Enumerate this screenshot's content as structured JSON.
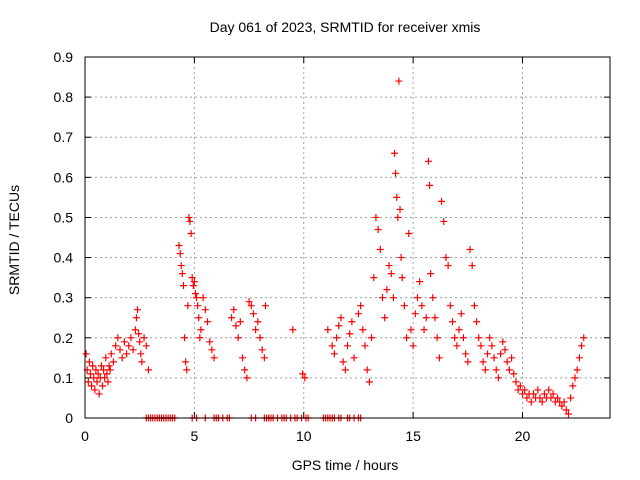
{
  "chart_data": {
    "type": "scatter",
    "title": "Day 061 of 2023, SRMTID for receiver xmis",
    "xlabel": "GPS time / hours",
    "ylabel": "SRMTID / TECUs",
    "xlim": [
      0,
      24
    ],
    "ylim": [
      0,
      0.9
    ],
    "xticks": [
      0,
      5,
      10,
      15,
      20
    ],
    "xtick_labels": [
      "0",
      "5",
      "10",
      "15",
      "20"
    ],
    "yticks": [
      0,
      0.1,
      0.2,
      0.3,
      0.4,
      0.5,
      0.6,
      0.7,
      0.8,
      0.9
    ],
    "ytick_labels": [
      "0",
      "0.1",
      "0.2",
      "0.3",
      "0.4",
      "0.5",
      "0.6",
      "0.7",
      "0.8",
      "0.9"
    ],
    "grid": true,
    "marker": "+",
    "series_color": "#ff0000",
    "series": [
      {
        "name": "SRMTID",
        "points": [
          [
            0.05,
            0.16
          ],
          [
            0.1,
            0.12
          ],
          [
            0.15,
            0.09
          ],
          [
            0.2,
            0.14
          ],
          [
            0.25,
            0.11
          ],
          [
            0.3,
            0.08
          ],
          [
            0.35,
            0.13
          ],
          [
            0.4,
            0.1
          ],
          [
            0.45,
            0.07
          ],
          [
            0.5,
            0.12
          ],
          [
            0.55,
            0.09
          ],
          [
            0.6,
            0.11
          ],
          [
            0.65,
            0.06
          ],
          [
            0.7,
            0.1
          ],
          [
            0.75,
            0.13
          ],
          [
            0.8,
            0.08
          ],
          [
            0.85,
            0.12
          ],
          [
            0.9,
            0.1
          ],
          [
            0.95,
            0.15
          ],
          [
            1.0,
            0.11
          ],
          [
            1.05,
            0.09
          ],
          [
            1.1,
            0.13
          ],
          [
            1.15,
            0.12
          ],
          [
            1.2,
            0.16
          ],
          [
            1.3,
            0.14
          ],
          [
            1.4,
            0.18
          ],
          [
            1.5,
            0.2
          ],
          [
            1.6,
            0.17
          ],
          [
            1.7,
            0.15
          ],
          [
            1.8,
            0.19
          ],
          [
            1.9,
            0.16
          ],
          [
            2.0,
            0.18
          ],
          [
            2.1,
            0.2
          ],
          [
            2.2,
            0.17
          ],
          [
            2.3,
            0.22
          ],
          [
            2.35,
            0.25
          ],
          [
            2.4,
            0.27
          ],
          [
            2.45,
            0.21
          ],
          [
            2.5,
            0.19
          ],
          [
            2.55,
            0.16
          ],
          [
            2.6,
            0.14
          ],
          [
            2.7,
            0.2
          ],
          [
            2.8,
            0.18
          ],
          [
            2.9,
            0.12
          ],
          [
            4.3,
            0.43
          ],
          [
            4.35,
            0.41
          ],
          [
            4.4,
            0.38
          ],
          [
            4.45,
            0.36
          ],
          [
            4.5,
            0.33
          ],
          [
            4.55,
            0.2
          ],
          [
            4.6,
            0.14
          ],
          [
            4.65,
            0.12
          ],
          [
            4.7,
            0.28
          ],
          [
            4.75,
            0.5
          ],
          [
            4.8,
            0.49
          ],
          [
            4.85,
            0.46
          ],
          [
            4.9,
            0.35
          ],
          [
            4.95,
            0.33
          ],
          [
            5.0,
            0.34
          ],
          [
            5.05,
            0.31
          ],
          [
            5.1,
            0.3
          ],
          [
            5.15,
            0.28
          ],
          [
            5.2,
            0.25
          ],
          [
            5.25,
            0.2
          ],
          [
            5.3,
            0.22
          ],
          [
            5.4,
            0.3
          ],
          [
            5.5,
            0.27
          ],
          [
            5.6,
            0.24
          ],
          [
            5.7,
            0.19
          ],
          [
            5.8,
            0.17
          ],
          [
            5.9,
            0.15
          ],
          [
            6.7,
            0.25
          ],
          [
            6.8,
            0.27
          ],
          [
            6.9,
            0.23
          ],
          [
            7.0,
            0.2
          ],
          [
            7.1,
            0.24
          ],
          [
            7.2,
            0.15
          ],
          [
            7.3,
            0.12
          ],
          [
            7.4,
            0.1
          ],
          [
            7.5,
            0.29
          ],
          [
            7.6,
            0.28
          ],
          [
            7.7,
            0.26
          ],
          [
            7.8,
            0.22
          ],
          [
            7.9,
            0.24
          ],
          [
            8.0,
            0.2
          ],
          [
            8.1,
            0.17
          ],
          [
            8.2,
            0.15
          ],
          [
            8.25,
            0.28
          ],
          [
            9.5,
            0.22
          ],
          [
            9.95,
            0.11
          ],
          [
            10.05,
            0.1
          ],
          [
            11.1,
            0.22
          ],
          [
            11.3,
            0.18
          ],
          [
            11.4,
            0.16
          ],
          [
            11.5,
            0.2
          ],
          [
            11.6,
            0.23
          ],
          [
            11.7,
            0.25
          ],
          [
            11.8,
            0.14
          ],
          [
            11.9,
            0.12
          ],
          [
            12.0,
            0.18
          ],
          [
            12.1,
            0.21
          ],
          [
            12.2,
            0.24
          ],
          [
            12.3,
            0.15
          ],
          [
            12.5,
            0.26
          ],
          [
            12.6,
            0.28
          ],
          [
            12.7,
            0.22
          ],
          [
            12.8,
            0.18
          ],
          [
            12.9,
            0.12
          ],
          [
            13.0,
            0.09
          ],
          [
            13.1,
            0.2
          ],
          [
            13.2,
            0.35
          ],
          [
            13.3,
            0.5
          ],
          [
            13.4,
            0.47
          ],
          [
            13.5,
            0.42
          ],
          [
            13.6,
            0.3
          ],
          [
            13.7,
            0.25
          ],
          [
            13.8,
            0.32
          ],
          [
            13.9,
            0.38
          ],
          [
            14.0,
            0.36
          ],
          [
            14.1,
            0.3
          ],
          [
            14.15,
            0.66
          ],
          [
            14.2,
            0.61
          ],
          [
            14.25,
            0.55
          ],
          [
            14.3,
            0.5
          ],
          [
            14.35,
            0.84
          ],
          [
            14.4,
            0.52
          ],
          [
            14.45,
            0.4
          ],
          [
            14.5,
            0.35
          ],
          [
            14.6,
            0.28
          ],
          [
            14.7,
            0.2
          ],
          [
            14.8,
            0.46
          ],
          [
            14.9,
            0.22
          ],
          [
            15.0,
            0.18
          ],
          [
            15.1,
            0.26
          ],
          [
            15.2,
            0.3
          ],
          [
            15.3,
            0.34
          ],
          [
            15.4,
            0.28
          ],
          [
            15.5,
            0.22
          ],
          [
            15.6,
            0.25
          ],
          [
            15.7,
            0.64
          ],
          [
            15.75,
            0.58
          ],
          [
            15.8,
            0.36
          ],
          [
            15.9,
            0.3
          ],
          [
            16.0,
            0.25
          ],
          [
            16.1,
            0.2
          ],
          [
            16.2,
            0.15
          ],
          [
            16.3,
            0.54
          ],
          [
            16.4,
            0.49
          ],
          [
            16.5,
            0.4
          ],
          [
            16.6,
            0.38
          ],
          [
            16.7,
            0.28
          ],
          [
            16.8,
            0.24
          ],
          [
            16.9,
            0.2
          ],
          [
            17.0,
            0.18
          ],
          [
            17.1,
            0.22
          ],
          [
            17.2,
            0.26
          ],
          [
            17.3,
            0.2
          ],
          [
            17.4,
            0.16
          ],
          [
            17.5,
            0.14
          ],
          [
            17.6,
            0.42
          ],
          [
            17.7,
            0.38
          ],
          [
            17.8,
            0.28
          ],
          [
            17.9,
            0.24
          ],
          [
            18.0,
            0.2
          ],
          [
            18.1,
            0.18
          ],
          [
            18.2,
            0.14
          ],
          [
            18.3,
            0.12
          ],
          [
            18.4,
            0.16
          ],
          [
            18.5,
            0.2
          ],
          [
            18.6,
            0.18
          ],
          [
            18.7,
            0.15
          ],
          [
            18.8,
            0.12
          ],
          [
            18.9,
            0.1
          ],
          [
            19.0,
            0.16
          ],
          [
            19.1,
            0.19
          ],
          [
            19.2,
            0.17
          ],
          [
            19.3,
            0.14
          ],
          [
            19.4,
            0.12
          ],
          [
            19.5,
            0.15
          ],
          [
            19.6,
            0.11
          ],
          [
            19.7,
            0.09
          ],
          [
            19.8,
            0.07
          ],
          [
            19.9,
            0.08
          ],
          [
            20.0,
            0.06
          ],
          [
            20.1,
            0.07
          ],
          [
            20.2,
            0.05
          ],
          [
            20.3,
            0.06
          ],
          [
            20.4,
            0.04
          ],
          [
            20.5,
            0.06
          ],
          [
            20.6,
            0.05
          ],
          [
            20.7,
            0.07
          ],
          [
            20.8,
            0.05
          ],
          [
            20.9,
            0.04
          ],
          [
            21.0,
            0.06
          ],
          [
            21.1,
            0.05
          ],
          [
            21.2,
            0.07
          ],
          [
            21.3,
            0.05
          ],
          [
            21.4,
            0.06
          ],
          [
            21.5,
            0.04
          ],
          [
            21.6,
            0.05
          ],
          [
            21.7,
            0.04
          ],
          [
            21.8,
            0.03
          ],
          [
            21.9,
            0.04
          ],
          [
            22.0,
            0.02
          ],
          [
            22.1,
            0.01
          ],
          [
            22.2,
            0.05
          ],
          [
            22.3,
            0.08
          ],
          [
            22.4,
            0.1
          ],
          [
            22.5,
            0.12
          ],
          [
            22.6,
            0.15
          ],
          [
            22.7,
            0.18
          ],
          [
            22.8,
            0.2
          ]
        ]
      }
    ],
    "zero_markers": {
      "y": 0,
      "x": [
        2.8,
        2.9,
        3.0,
        3.1,
        3.2,
        3.3,
        3.4,
        3.5,
        3.6,
        3.7,
        3.8,
        3.9,
        4.0,
        4.1,
        4.9,
        5.1,
        5.5,
        5.9,
        6.0,
        6.1,
        6.3,
        6.5,
        6.6,
        7.6,
        7.8,
        8.2,
        8.3,
        8.4,
        8.5,
        8.6,
        8.8,
        9.0,
        9.1,
        9.2,
        9.4,
        9.6,
        9.7,
        9.9,
        10.1,
        10.2,
        10.9,
        11.0,
        11.1,
        11.2,
        11.3,
        11.4,
        11.6,
        11.7,
        12.0,
        12.1,
        12.3,
        12.5,
        12.6
      ]
    }
  }
}
